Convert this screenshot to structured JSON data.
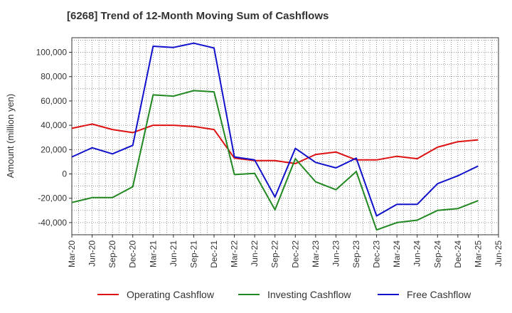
{
  "chart_data": {
    "type": "line",
    "title": "[6268]  Trend of 12-Month Moving Sum of Cashflows",
    "xlabel": "",
    "ylabel": "Amount (million yen)",
    "ylim": [
      -50000,
      112000
    ],
    "yticks": [
      -40000,
      -20000,
      0,
      20000,
      40000,
      60000,
      80000,
      100000
    ],
    "ytick_labels": [
      "-40,000",
      "-20,000",
      "0",
      "20,000",
      "40,000",
      "60,000",
      "80,000",
      "100,000"
    ],
    "categories": [
      "Mar-20",
      "Jun-20",
      "Sep-20",
      "Dec-20",
      "Mar-21",
      "Jun-21",
      "Sep-21",
      "Dec-21",
      "Mar-22",
      "Jun-22",
      "Sep-22",
      "Dec-22",
      "Mar-23",
      "Jun-23",
      "Sep-23",
      "Dec-23",
      "Mar-24",
      "Jun-24",
      "Sep-24",
      "Dec-24",
      "Mar-25",
      "Jun-25"
    ],
    "grid": true,
    "legend_position": "bottom",
    "series": [
      {
        "name": "Operating Cashflow",
        "color": "#dd1111",
        "values": [
          37500,
          41000,
          36500,
          34000,
          40000,
          40000,
          39000,
          36500,
          13000,
          11000,
          11000,
          8500,
          16000,
          18000,
          11500,
          11500,
          14500,
          12500,
          22000,
          26500,
          28000,
          null
        ]
      },
      {
        "name": "Investing Cashflow",
        "color": "#228822",
        "values": [
          -23500,
          -19500,
          -19500,
          -10500,
          65000,
          64000,
          68500,
          67500,
          -500,
          500,
          -29500,
          12500,
          -6500,
          -13000,
          2000,
          -46000,
          -40000,
          -38000,
          -30000,
          -28500,
          -22000,
          null
        ]
      },
      {
        "name": "Free Cashflow",
        "color": "#1111cc",
        "values": [
          14000,
          21500,
          16500,
          23500,
          105000,
          104000,
          107500,
          103500,
          14000,
          11500,
          -19000,
          21000,
          9500,
          5000,
          13000,
          -34500,
          -25000,
          -25000,
          -8000,
          -1500,
          6500,
          null
        ]
      }
    ]
  }
}
